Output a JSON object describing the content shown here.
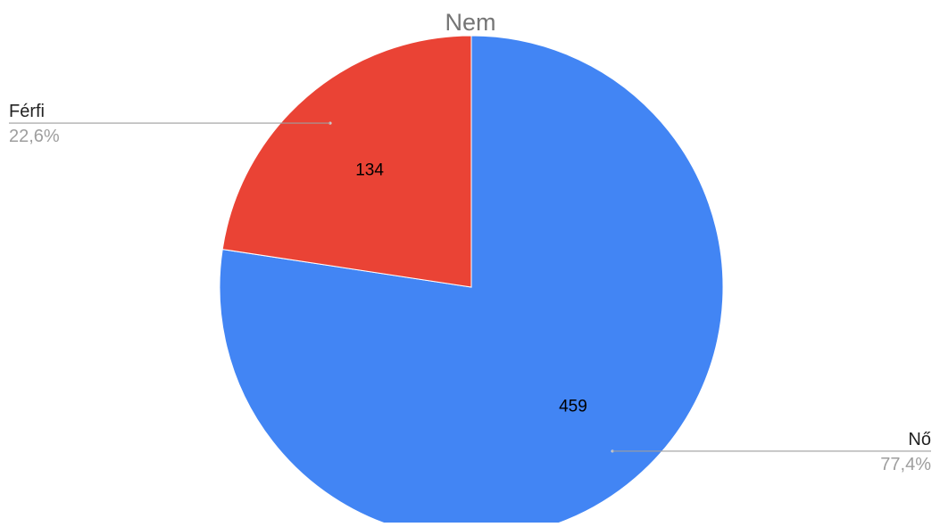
{
  "chart_data": {
    "type": "pie",
    "title": "Nem",
    "slices": [
      {
        "label": "Nő",
        "value": 459,
        "percent_label": "77,4%",
        "color": "#4285f4"
      },
      {
        "label": "Férfi",
        "value": 134,
        "percent_label": "22,6%",
        "color": "#ea4335"
      }
    ],
    "labels_inside": "values",
    "legend": "callout-labels"
  }
}
